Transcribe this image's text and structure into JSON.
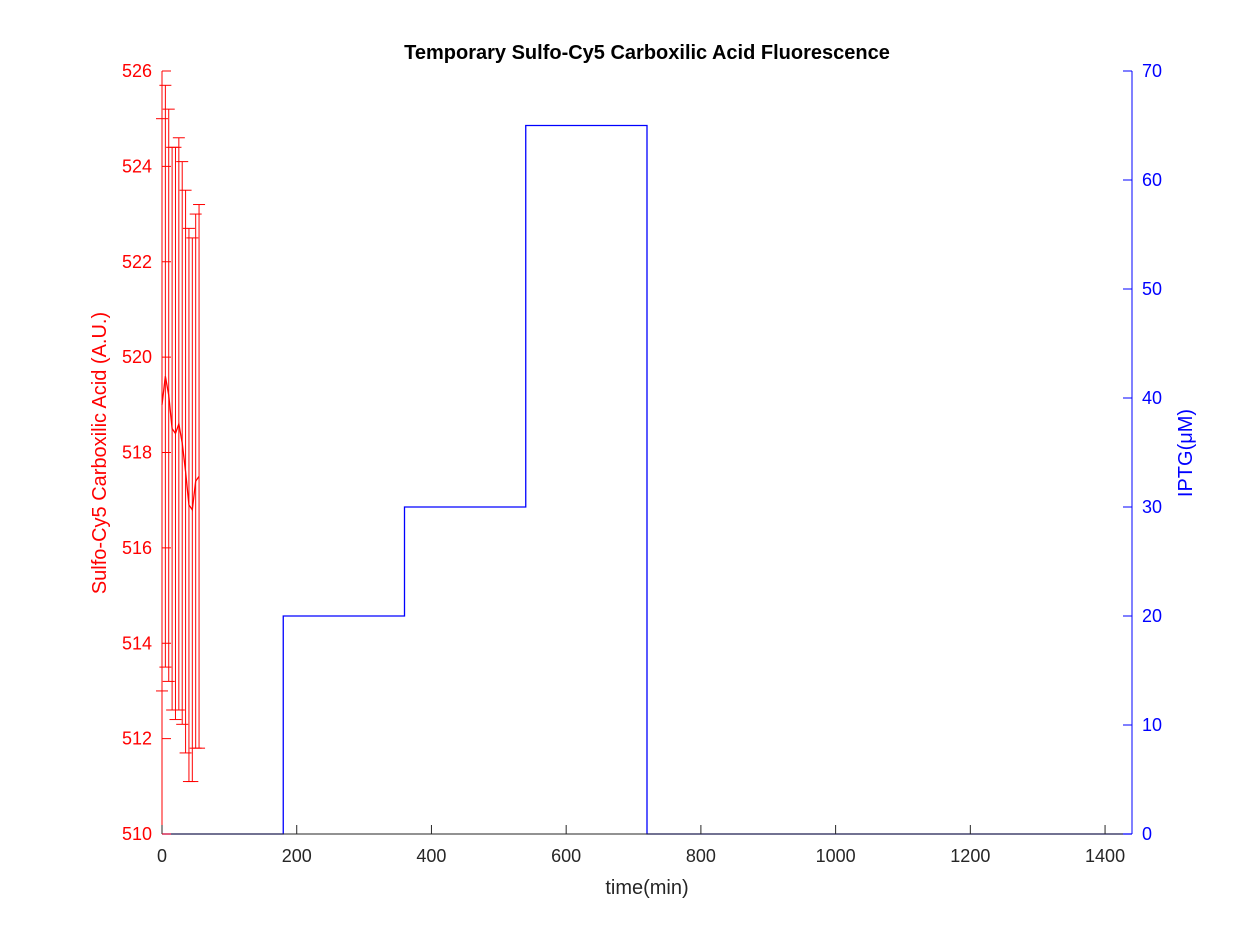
{
  "chart_data": {
    "type": "line",
    "title": "Temporary Sulfo-Cy5 Carboxilic Acid Fluorescence",
    "xlabel": "time(min)",
    "ylabel_left": "Sulfo-Cy5 Carboxilic Acid (A.U.)",
    "ylabel_right": "IPTG(μM)",
    "xlim": [
      0,
      1440
    ],
    "ylim_left": [
      510,
      526
    ],
    "ylim_right": [
      0,
      70
    ],
    "xticks": [
      0,
      200,
      400,
      600,
      800,
      1000,
      1200,
      1400
    ],
    "yticks_left": [
      510,
      512,
      514,
      516,
      518,
      520,
      522,
      524,
      526
    ],
    "yticks_right": [
      0,
      10,
      20,
      30,
      40,
      50,
      60,
      70
    ],
    "grid": false,
    "colors": {
      "left_axis": "#ff0000",
      "right_axis": "#0000ff",
      "text": "#262626"
    },
    "series": [
      {
        "axis": "left",
        "style": "line-errorbar",
        "x": [
          0,
          5,
          10,
          15,
          20,
          25,
          30,
          35,
          40,
          45,
          50,
          55
        ],
        "y": [
          519.0,
          519.6,
          519.2,
          518.5,
          518.4,
          518.6,
          518.2,
          517.6,
          516.9,
          516.8,
          517.4,
          517.5
        ],
        "err": [
          6.0,
          6.1,
          6.0,
          5.9,
          6.0,
          6.0,
          5.9,
          5.9,
          5.8,
          5.7,
          5.6,
          5.7
        ]
      },
      {
        "axis": "right",
        "style": "step",
        "x": [
          0,
          180,
          180,
          360,
          360,
          540,
          540,
          720,
          720,
          1440
        ],
        "y": [
          0,
          0,
          20,
          20,
          30,
          30,
          65,
          65,
          0,
          0
        ]
      }
    ]
  }
}
